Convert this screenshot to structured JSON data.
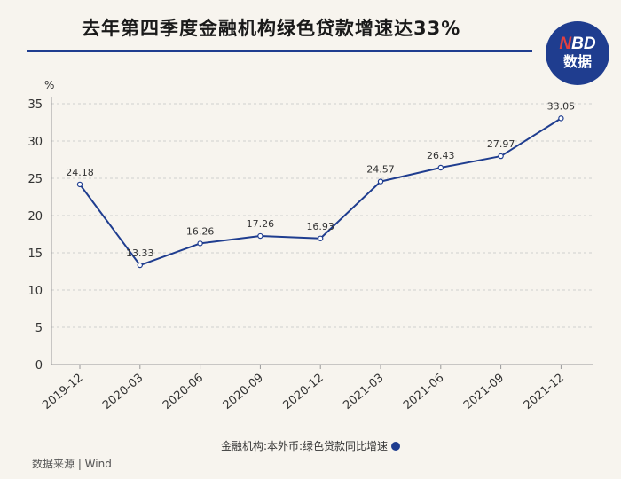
{
  "header": {
    "title": "去年第四季度金融机构绿色贷款增速达33%",
    "logo_top": "NBD",
    "logo_bottom": "数据"
  },
  "footer": {
    "source": "数据来源 | Wind"
  },
  "colors": {
    "accent": "#1f3d8f",
    "logo_highlight": "#e34040",
    "grid": "#cfcfcf"
  },
  "chart_data": {
    "type": "line",
    "title": "去年第四季度金融机构绿色贷款增速达33%",
    "ylabel": "%",
    "xlabel": "",
    "ylim": [
      0,
      35
    ],
    "yticks": [
      0,
      5,
      10,
      15,
      20,
      25,
      30,
      35
    ],
    "grid": true,
    "legend_position": "bottom",
    "categories": [
      "2019-12",
      "2020-03",
      "2020-06",
      "2020-09",
      "2020-12",
      "2021-03",
      "2021-06",
      "2021-09",
      "2021-12"
    ],
    "series": [
      {
        "name": "金融机构:本外币:绿色贷款同比增速",
        "values": [
          24.18,
          13.33,
          16.26,
          17.26,
          16.93,
          24.57,
          26.43,
          27.97,
          33.05
        ],
        "labels": [
          "24.18",
          "13.33",
          "16.26",
          "17.26",
          "16.93",
          "24.57",
          "26.43",
          "27.97",
          "33.05"
        ]
      }
    ]
  }
}
